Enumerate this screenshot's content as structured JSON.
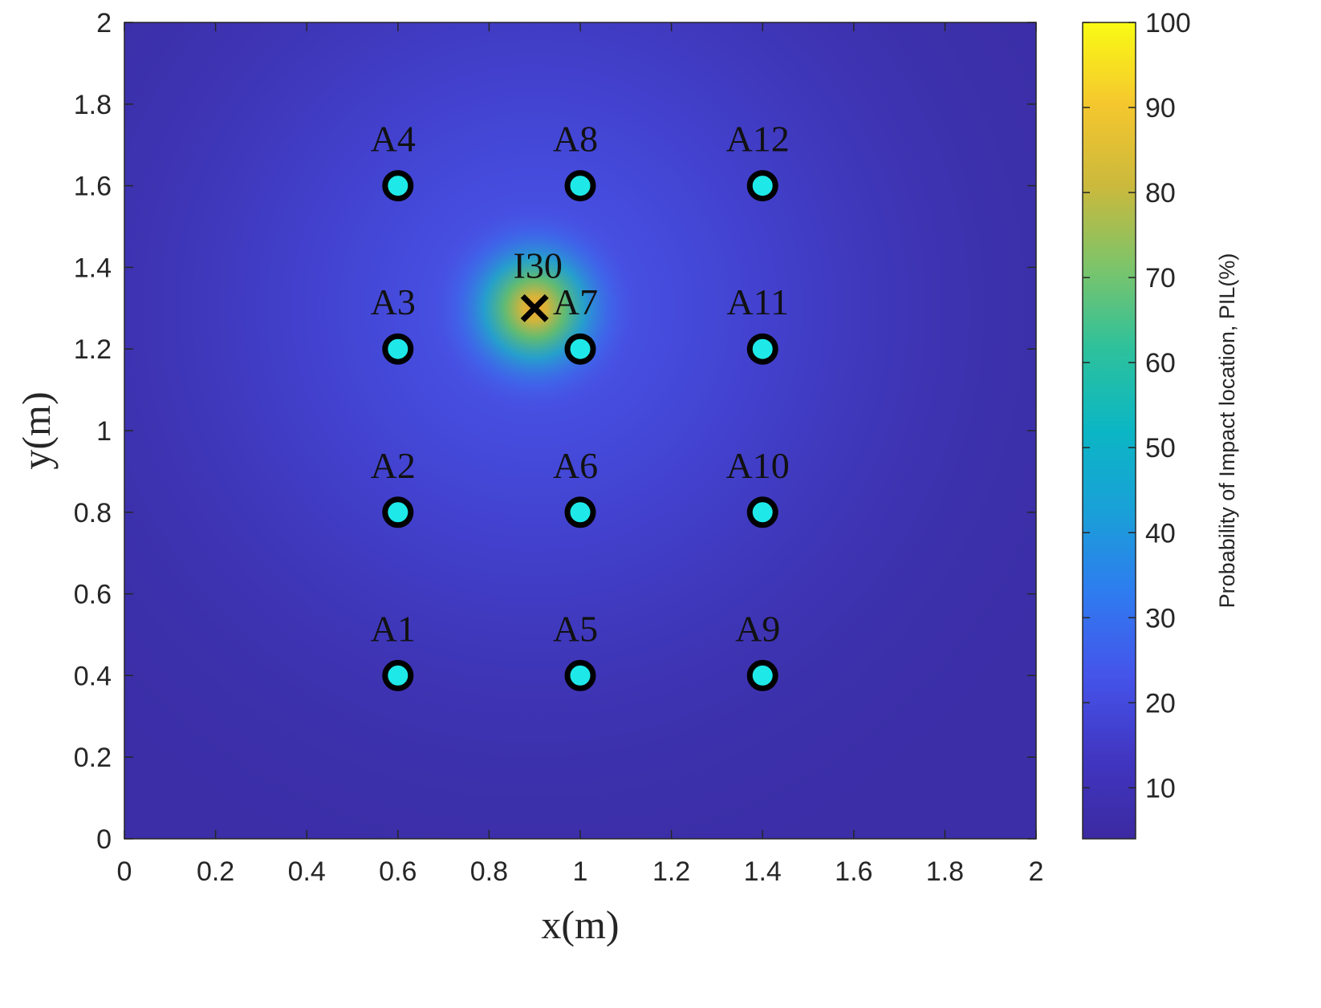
{
  "chart_data": {
    "type": "heatmap",
    "xlabel": "x(m)",
    "ylabel": "y(m)",
    "xlim": [
      0,
      2
    ],
    "ylim": [
      0,
      2
    ],
    "xticks": [
      "0",
      "0.2",
      "0.4",
      "0.6",
      "0.8",
      "1",
      "1.2",
      "1.4",
      "1.6",
      "1.8",
      "2"
    ],
    "yticks": [
      "0",
      "0.2",
      "0.4",
      "0.6",
      "0.8",
      "1",
      "1.2",
      "1.4",
      "1.6",
      "1.8",
      "2"
    ],
    "colorbar": {
      "label": "Probability of Impact location, PIL(%)",
      "range": [
        4,
        100
      ],
      "ticks": [
        "10",
        "20",
        "30",
        "40",
        "50",
        "60",
        "70",
        "80",
        "90",
        "100"
      ],
      "colormap": "parula"
    },
    "field": {
      "peak_at": [
        0.9,
        1.3
      ],
      "peak_value": 100,
      "min_value": 4
    },
    "sensors": [
      {
        "name": "A1",
        "x": 0.6,
        "y": 0.4
      },
      {
        "name": "A2",
        "x": 0.6,
        "y": 0.8
      },
      {
        "name": "A3",
        "x": 0.6,
        "y": 1.2
      },
      {
        "name": "A4",
        "x": 0.6,
        "y": 1.6
      },
      {
        "name": "A5",
        "x": 1.0,
        "y": 0.4
      },
      {
        "name": "A6",
        "x": 1.0,
        "y": 0.8
      },
      {
        "name": "A7",
        "x": 1.0,
        "y": 1.2
      },
      {
        "name": "A8",
        "x": 1.0,
        "y": 1.6
      },
      {
        "name": "A9",
        "x": 1.4,
        "y": 0.4
      },
      {
        "name": "A10",
        "x": 1.4,
        "y": 0.8
      },
      {
        "name": "A11",
        "x": 1.4,
        "y": 1.2
      },
      {
        "name": "A12",
        "x": 1.4,
        "y": 1.6
      }
    ],
    "impact": {
      "name": "I30",
      "x": 0.9,
      "y": 1.3
    },
    "colors": {
      "sensor_fill": "#1fe8e8",
      "sensor_edge": "#000000",
      "impact_marker": "#000000"
    }
  }
}
